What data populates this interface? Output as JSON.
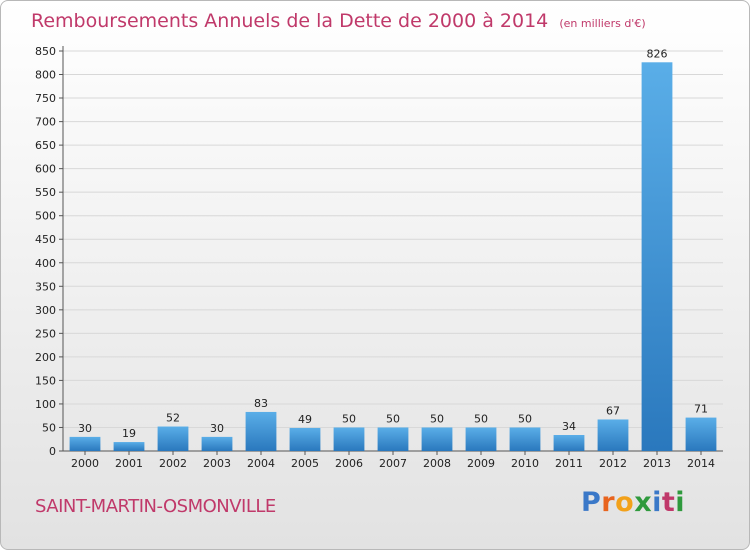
{
  "title": "Remboursements Annuels de la Dette de 2000 à 2014",
  "unit_note": "(en milliers d'€)",
  "footer_place": "SAINT-MARTIN-OSMONVILLE",
  "logo": {
    "text": "Proxiti",
    "letters": [
      {
        "ch": "P",
        "color": "#3a78c8"
      },
      {
        "ch": "r",
        "color": "#e8641e"
      },
      {
        "ch": "o",
        "color": "#f2a11a"
      },
      {
        "ch": "x",
        "color": "#2f9a3d"
      },
      {
        "ch": "i",
        "color": "#3a78c8"
      },
      {
        "ch": "t",
        "color": "#c0396a"
      },
      {
        "ch": "i",
        "color": "#2f9a3d"
      }
    ]
  },
  "colors": {
    "title": "#c0396a",
    "bar_top": "#5aaee8",
    "bar_bottom": "#2a78bd",
    "grid": "#d8d8d8"
  },
  "chart_data": {
    "type": "bar",
    "categories": [
      "2000",
      "2001",
      "2002",
      "2003",
      "2004",
      "2005",
      "2006",
      "2007",
      "2008",
      "2009",
      "2010",
      "2011",
      "2012",
      "2013",
      "2014"
    ],
    "values": [
      30,
      19,
      52,
      30,
      83,
      49,
      50,
      50,
      50,
      50,
      50,
      34,
      67,
      826,
      71
    ],
    "ylim": [
      0,
      850
    ],
    "yticks": [
      0,
      50,
      100,
      150,
      200,
      250,
      300,
      350,
      400,
      450,
      500,
      550,
      600,
      650,
      700,
      750,
      800,
      850
    ],
    "grid": true,
    "data_labels": true
  }
}
